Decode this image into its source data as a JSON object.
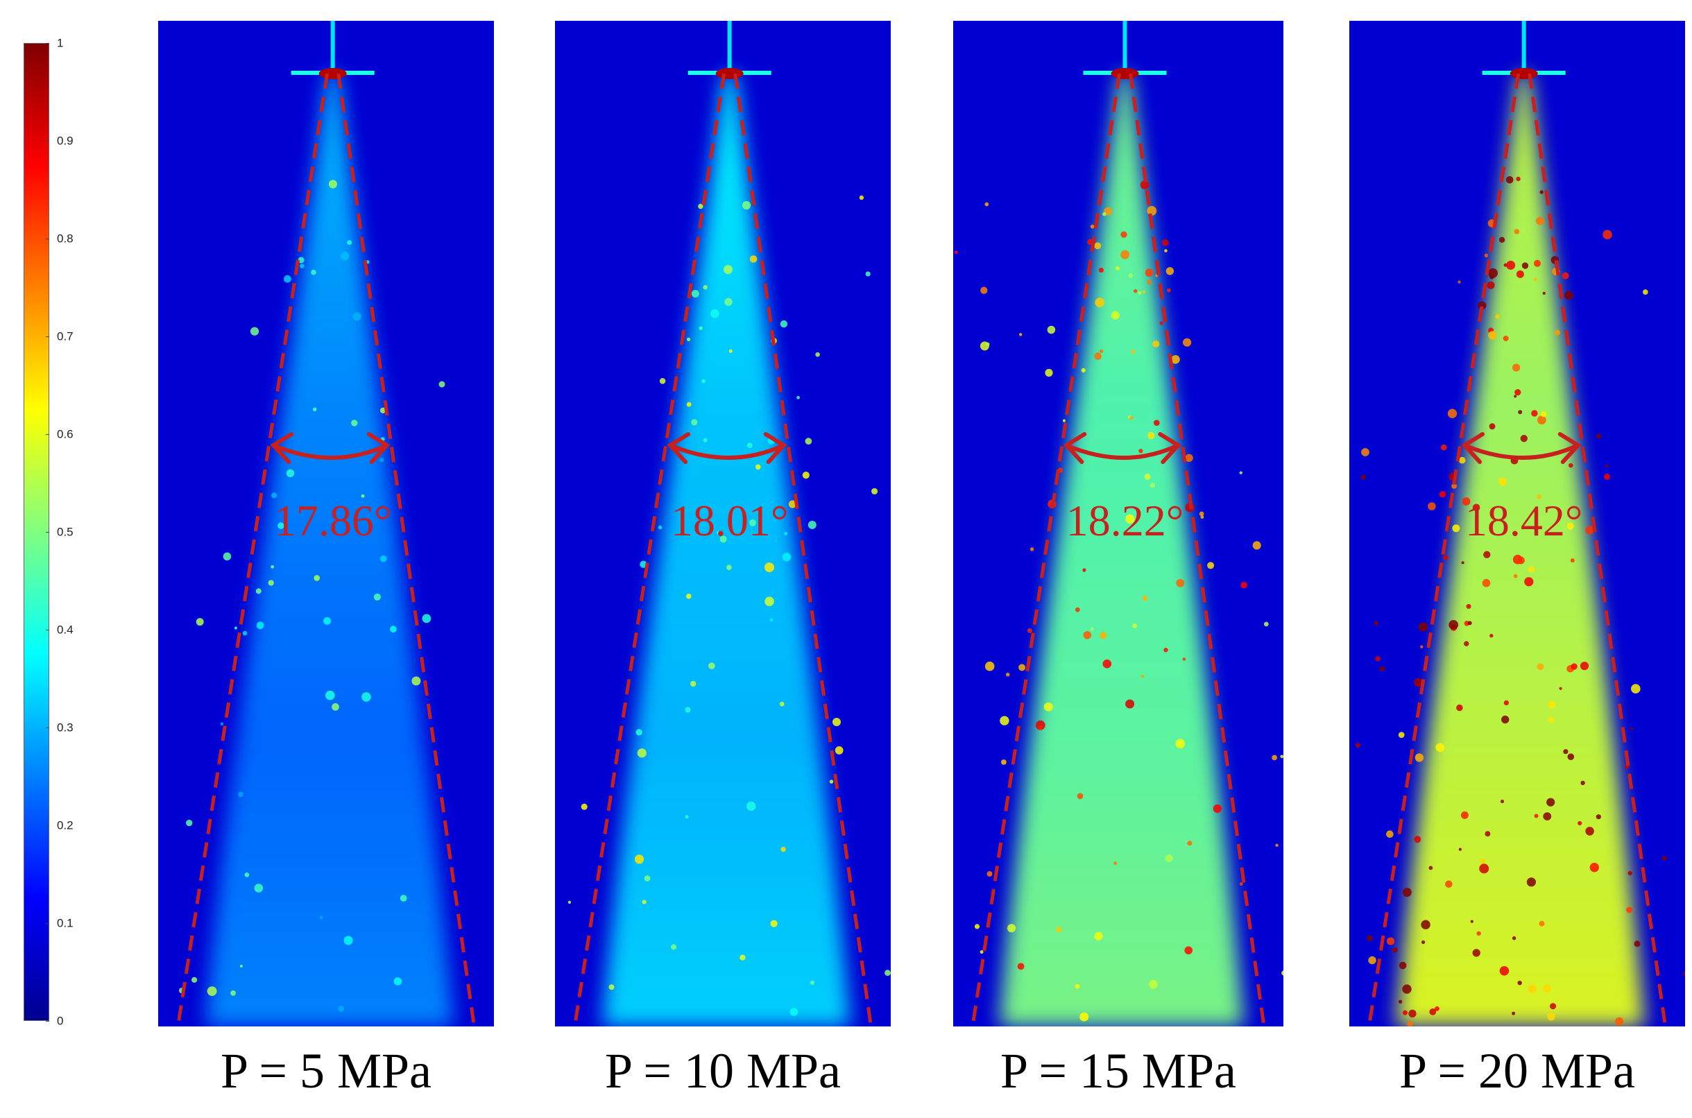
{
  "colorbar": {
    "ticks": [
      "0",
      "0.1",
      "0.2",
      "0.3",
      "0.4",
      "0.5",
      "0.6",
      "0.7",
      "0.8",
      "0.9",
      "1"
    ]
  },
  "panels": [
    {
      "pressure_label": "P = 5 MPa",
      "angle_label": "17.86°",
      "intensity": 0.18,
      "speckle": 0.05
    },
    {
      "pressure_label": "P = 10 MPa",
      "angle_label": "18.01°",
      "intensity": 0.26,
      "speckle": 0.1
    },
    {
      "pressure_label": "P = 15 MPa",
      "angle_label": "18.22°",
      "intensity": 0.42,
      "speckle": 0.25
    },
    {
      "pressure_label": "P = 20 MPa",
      "angle_label": "18.42°",
      "intensity": 0.52,
      "speckle": 0.45
    }
  ],
  "colors": {
    "background": "#0a22b0",
    "annotation": "#c8201e"
  }
}
